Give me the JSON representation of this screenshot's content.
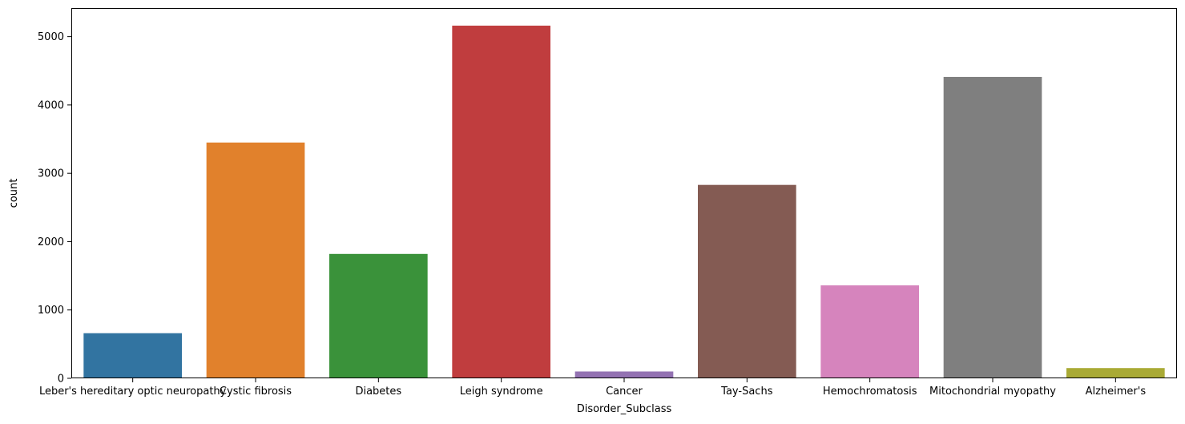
{
  "chart_data": {
    "type": "bar",
    "title": "",
    "xlabel": "Disorder_Subclass",
    "ylabel": "count",
    "categories": [
      "Leber's hereditary optic neuropathy",
      "Cystic fibrosis",
      "Diabetes",
      "Leigh syndrome",
      "Cancer",
      "Tay-Sachs",
      "Hemochromatosis",
      "Mitochondrial myopathy",
      "Alzheimer's"
    ],
    "values": [
      660,
      3450,
      1820,
      5160,
      100,
      2830,
      1360,
      4410,
      150
    ],
    "colors": [
      "#3274a1",
      "#e1812c",
      "#3a923a",
      "#c03d3e",
      "#9372b2",
      "#845b53",
      "#d684bd",
      "#7f7f7f",
      "#a9aa35"
    ],
    "ylim": [
      0,
      5418
    ],
    "yticks": [
      0,
      1000,
      2000,
      3000,
      4000,
      5000
    ],
    "grid": false,
    "legend": "none"
  }
}
